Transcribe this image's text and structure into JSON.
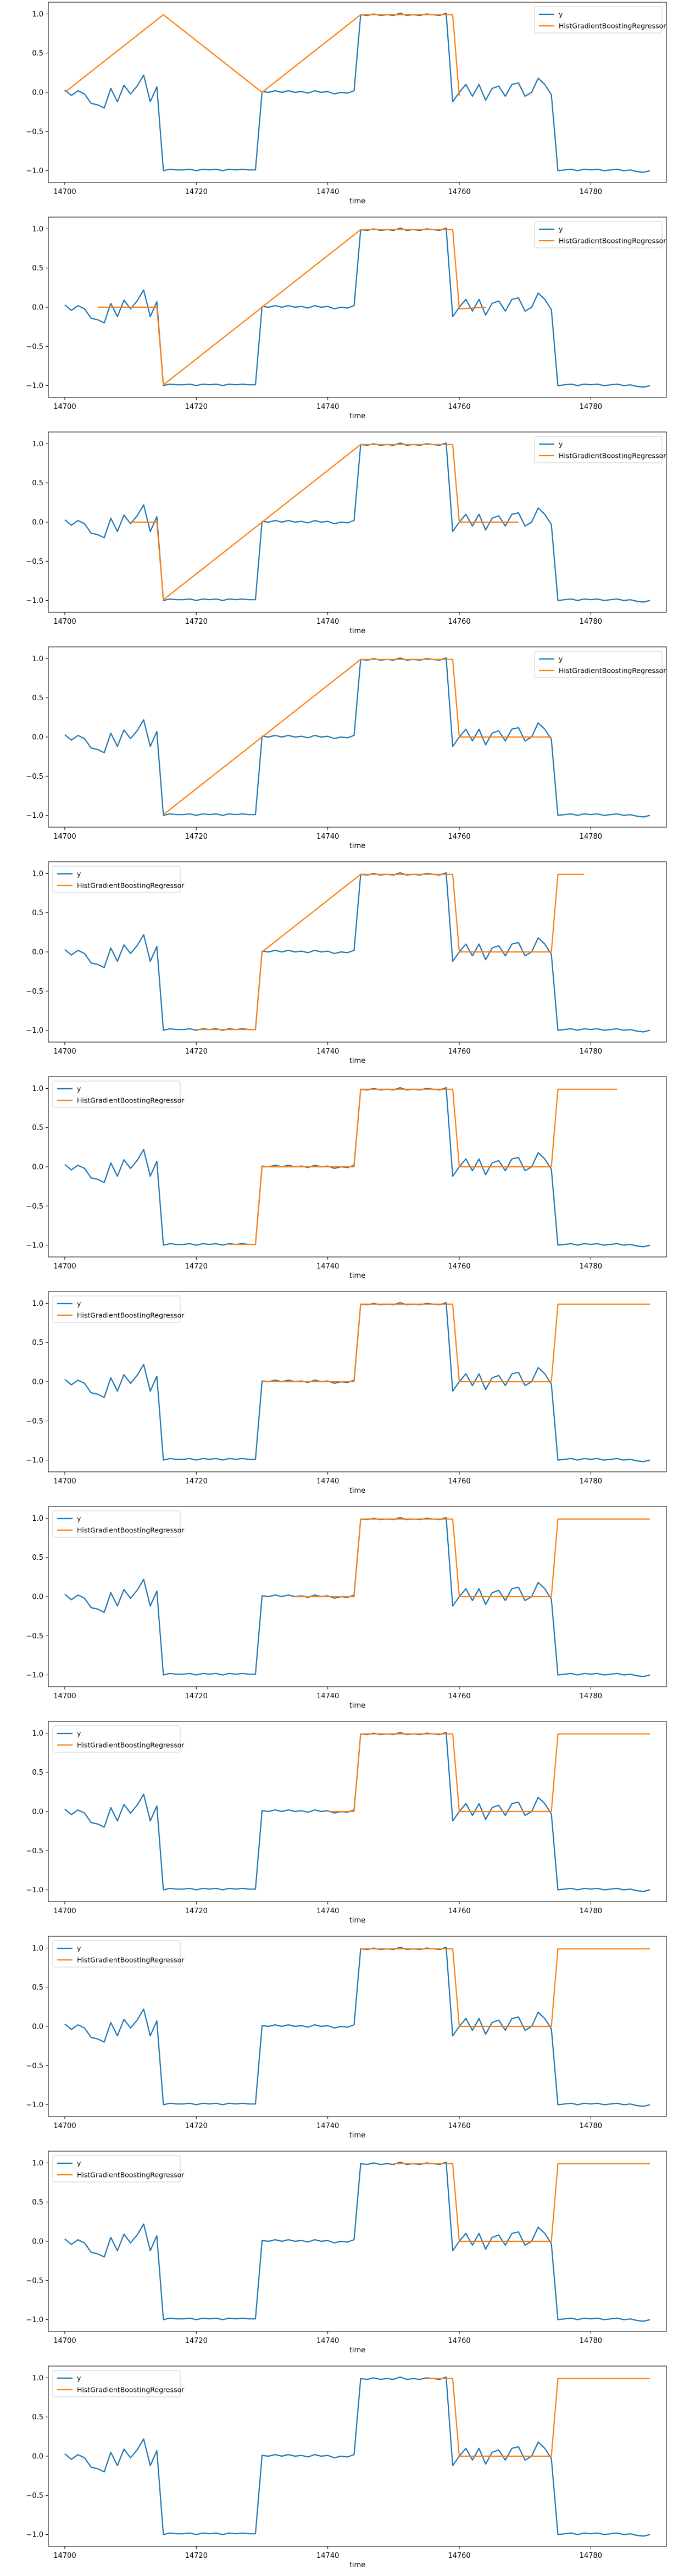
{
  "series_colors": {
    "y": "#1f77b4",
    "model": "#ff7f0e"
  },
  "y_series": {
    "name": "y",
    "x": [
      14700,
      14701,
      14702,
      14703,
      14704,
      14705,
      14706,
      14707,
      14708,
      14709,
      14710,
      14711,
      14712,
      14713,
      14714,
      14715,
      14716,
      14717,
      14718,
      14719,
      14720,
      14721,
      14722,
      14723,
      14724,
      14725,
      14726,
      14727,
      14728,
      14729,
      14730,
      14731,
      14732,
      14733,
      14734,
      14735,
      14736,
      14737,
      14738,
      14739,
      14740,
      14741,
      14742,
      14743,
      14744,
      14745,
      14746,
      14747,
      14748,
      14749,
      14750,
      14751,
      14752,
      14753,
      14754,
      14755,
      14756,
      14757,
      14758,
      14759,
      14760,
      14761,
      14762,
      14763,
      14764,
      14765,
      14766,
      14767,
      14768,
      14769,
      14770,
      14771,
      14772,
      14773,
      14774,
      14775,
      14776,
      14777,
      14778,
      14779,
      14780,
      14781,
      14782,
      14783,
      14784,
      14785,
      14786,
      14787,
      14788,
      14789
    ],
    "values": [
      0.03,
      -0.04,
      0.02,
      -0.02,
      -0.14,
      -0.16,
      -0.2,
      0.05,
      -0.12,
      0.09,
      -0.02,
      0.08,
      0.22,
      -0.12,
      0.07,
      -1.0,
      -0.98,
      -0.99,
      -0.99,
      -0.98,
      -1.0,
      -0.98,
      -0.99,
      -0.98,
      -1.0,
      -0.98,
      -0.99,
      -0.98,
      -0.99,
      -0.99,
      0.01,
      0.0,
      0.02,
      0.0,
      0.02,
      0.0,
      0.01,
      -0.01,
      0.02,
      0.0,
      0.01,
      -0.02,
      0.0,
      -0.01,
      0.02,
      0.99,
      0.98,
      1.0,
      0.98,
      0.99,
      0.98,
      1.01,
      0.98,
      0.99,
      0.98,
      1.0,
      0.99,
      0.98,
      1.01,
      -0.12,
      0.0,
      0.1,
      -0.05,
      0.1,
      -0.1,
      0.05,
      0.08,
      -0.05,
      0.1,
      0.12,
      -0.05,
      0.0,
      0.18,
      0.1,
      -0.03,
      -1.0,
      -0.99,
      -0.98,
      -1.0,
      -0.98,
      -0.99,
      -0.98,
      -1.0,
      -0.99,
      -0.98,
      -1.0,
      -0.99,
      -1.01,
      -1.02,
      -1.0
    ]
  },
  "chart_data": [
    {
      "type": "line",
      "xlabel": "time",
      "xlim": [
        14697.5,
        14791.5
      ],
      "ylim": [
        -1.15,
        1.15
      ],
      "xticks": [
        14700,
        14720,
        14740,
        14760,
        14780
      ],
      "xtick_labels": [
        "14700",
        "14720",
        "14740",
        "14760",
        "14780"
      ],
      "yticks": [
        -1.0,
        -0.5,
        0.0,
        0.5,
        1.0
      ],
      "ytick_labels": [
        "−1.0",
        "−0.5",
        "0.0",
        "0.5",
        "1.0"
      ],
      "legend": [
        "y",
        "HistGradientBoostingRegressor"
      ],
      "legend_loc": "upper right",
      "model_x": [
        14700,
        14715,
        14730,
        14745,
        14759,
        14760
      ],
      "model_values": [
        0.0,
        0.99,
        0.0,
        0.99,
        0.99,
        -0.05
      ]
    },
    {
      "type": "line",
      "xlabel": "time",
      "xlim": [
        14697.5,
        14791.5
      ],
      "ylim": [
        -1.15,
        1.15
      ],
      "xticks": [
        14700,
        14720,
        14740,
        14760,
        14780
      ],
      "xtick_labels": [
        "14700",
        "14720",
        "14740",
        "14760",
        "14780"
      ],
      "yticks": [
        -1.0,
        -0.5,
        0.0,
        0.5,
        1.0
      ],
      "ytick_labels": [
        "−1.0",
        "−0.5",
        "0.0",
        "0.5",
        "1.0"
      ],
      "legend": [
        "y",
        "HistGradientBoostingRegressor"
      ],
      "legend_loc": "upper right",
      "model_x": [
        14705,
        14714,
        14715,
        14730,
        14745,
        14759,
        14760,
        14764
      ],
      "model_values": [
        0.0,
        0.0,
        -0.99,
        0.0,
        0.99,
        0.99,
        -0.02,
        0.0
      ]
    },
    {
      "type": "line",
      "xlabel": "time",
      "xlim": [
        14697.5,
        14791.5
      ],
      "ylim": [
        -1.15,
        1.15
      ],
      "xticks": [
        14700,
        14720,
        14740,
        14760,
        14780
      ],
      "xtick_labels": [
        "14700",
        "14720",
        "14740",
        "14760",
        "14780"
      ],
      "yticks": [
        -1.0,
        -0.5,
        0.0,
        0.5,
        1.0
      ],
      "ytick_labels": [
        "−1.0",
        "−0.5",
        "0.0",
        "0.5",
        "1.0"
      ],
      "legend": [
        "y",
        "HistGradientBoostingRegressor"
      ],
      "legend_loc": "upper right",
      "model_x": [
        14710,
        14714,
        14715,
        14730,
        14745,
        14759,
        14760,
        14769
      ],
      "model_values": [
        0.0,
        0.0,
        -0.99,
        0.0,
        0.99,
        0.99,
        0.0,
        0.0
      ]
    },
    {
      "type": "line",
      "xlabel": "time",
      "xlim": [
        14697.5,
        14791.5
      ],
      "ylim": [
        -1.15,
        1.15
      ],
      "xticks": [
        14700,
        14720,
        14740,
        14760,
        14780
      ],
      "xtick_labels": [
        "14700",
        "14720",
        "14740",
        "14760",
        "14780"
      ],
      "yticks": [
        -1.0,
        -0.5,
        0.0,
        0.5,
        1.0
      ],
      "ytick_labels": [
        "−1.0",
        "−0.5",
        "0.0",
        "0.5",
        "1.0"
      ],
      "legend": [
        "y",
        "HistGradientBoostingRegressor"
      ],
      "legend_loc": "upper right",
      "model_x": [
        14715,
        14730,
        14745,
        14759,
        14760,
        14774
      ],
      "model_values": [
        -0.99,
        0.0,
        0.99,
        0.99,
        0.0,
        0.0
      ]
    },
    {
      "type": "line",
      "xlabel": "time",
      "xlim": [
        14697.5,
        14791.5
      ],
      "ylim": [
        -1.15,
        1.15
      ],
      "xticks": [
        14700,
        14720,
        14740,
        14760,
        14780
      ],
      "xtick_labels": [
        "14700",
        "14720",
        "14740",
        "14760",
        "14780"
      ],
      "yticks": [
        -1.0,
        -0.5,
        0.0,
        0.5,
        1.0
      ],
      "ytick_labels": [
        "−1.0",
        "−0.5",
        "0.0",
        "0.5",
        "1.0"
      ],
      "legend": [
        "y",
        "HistGradientBoostingRegressor"
      ],
      "legend_loc": "upper left",
      "model_x": [
        14720,
        14729,
        14730,
        14745,
        14759,
        14760,
        14774,
        14775,
        14779
      ],
      "model_values": [
        -0.99,
        -0.99,
        0.0,
        0.99,
        0.99,
        0.0,
        0.0,
        0.99,
        0.99
      ]
    },
    {
      "type": "line",
      "xlabel": "time",
      "xlim": [
        14697.5,
        14791.5
      ],
      "ylim": [
        -1.15,
        1.15
      ],
      "xticks": [
        14700,
        14720,
        14740,
        14760,
        14780
      ],
      "xtick_labels": [
        "14700",
        "14720",
        "14740",
        "14760",
        "14780"
      ],
      "yticks": [
        -1.0,
        -0.5,
        0.0,
        0.5,
        1.0
      ],
      "ytick_labels": [
        "−1.0",
        "−0.5",
        "0.0",
        "0.5",
        "1.0"
      ],
      "legend": [
        "y",
        "HistGradientBoostingRegressor"
      ],
      "legend_loc": "upper left",
      "model_x": [
        14725,
        14729,
        14730,
        14744,
        14745,
        14759,
        14760,
        14774,
        14775,
        14784
      ],
      "model_values": [
        -0.99,
        -0.99,
        0.0,
        0.0,
        0.99,
        0.99,
        0.0,
        0.0,
        0.99,
        0.99
      ]
    },
    {
      "type": "line",
      "xlabel": "time",
      "xlim": [
        14697.5,
        14791.5
      ],
      "ylim": [
        -1.15,
        1.15
      ],
      "xticks": [
        14700,
        14720,
        14740,
        14760,
        14780
      ],
      "xtick_labels": [
        "14700",
        "14720",
        "14740",
        "14760",
        "14780"
      ],
      "yticks": [
        -1.0,
        -0.5,
        0.0,
        0.5,
        1.0
      ],
      "ytick_labels": [
        "−1.0",
        "−0.5",
        "0.0",
        "0.5",
        "1.0"
      ],
      "legend": [
        "y",
        "HistGradientBoostingRegressor"
      ],
      "legend_loc": "upper left",
      "model_x": [
        14730,
        14744,
        14745,
        14759,
        14760,
        14774,
        14775,
        14789
      ],
      "model_values": [
        0.0,
        0.0,
        0.99,
        0.99,
        0.0,
        0.0,
        0.99,
        0.99
      ]
    },
    {
      "type": "line",
      "xlabel": "time",
      "xlim": [
        14697.5,
        14791.5
      ],
      "ylim": [
        -1.15,
        1.15
      ],
      "xticks": [
        14700,
        14720,
        14740,
        14760,
        14780
      ],
      "xtick_labels": [
        "14700",
        "14720",
        "14740",
        "14760",
        "14780"
      ],
      "yticks": [
        -1.0,
        -0.5,
        0.0,
        0.5,
        1.0
      ],
      "ytick_labels": [
        "−1.0",
        "−0.5",
        "0.0",
        "0.5",
        "1.0"
      ],
      "legend": [
        "y",
        "HistGradientBoostingRegressor"
      ],
      "legend_loc": "upper left",
      "model_x": [
        14735,
        14744,
        14745,
        14759,
        14760,
        14774,
        14775,
        14789
      ],
      "model_values": [
        0.0,
        0.0,
        0.99,
        0.99,
        0.0,
        0.0,
        0.99,
        0.99
      ]
    },
    {
      "type": "line",
      "xlabel": "time",
      "xlim": [
        14697.5,
        14791.5
      ],
      "ylim": [
        -1.15,
        1.15
      ],
      "xticks": [
        14700,
        14720,
        14740,
        14760,
        14780
      ],
      "xtick_labels": [
        "14700",
        "14720",
        "14740",
        "14760",
        "14780"
      ],
      "yticks": [
        -1.0,
        -0.5,
        0.0,
        0.5,
        1.0
      ],
      "ytick_labels": [
        "−1.0",
        "−0.5",
        "0.0",
        "0.5",
        "1.0"
      ],
      "legend": [
        "y",
        "HistGradientBoostingRegressor"
      ],
      "legend_loc": "upper left",
      "model_x": [
        14740,
        14744,
        14745,
        14759,
        14760,
        14774,
        14775,
        14789
      ],
      "model_values": [
        0.0,
        0.0,
        0.99,
        0.99,
        0.0,
        0.0,
        0.99,
        0.99
      ]
    },
    {
      "type": "line",
      "xlabel": "time",
      "xlim": [
        14697.5,
        14791.5
      ],
      "ylim": [
        -1.15,
        1.15
      ],
      "xticks": [
        14700,
        14720,
        14740,
        14760,
        14780
      ],
      "xtick_labels": [
        "14700",
        "14720",
        "14740",
        "14760",
        "14780"
      ],
      "yticks": [
        -1.0,
        -0.5,
        0.0,
        0.5,
        1.0
      ],
      "ytick_labels": [
        "−1.0",
        "−0.5",
        "0.0",
        "0.5",
        "1.0"
      ],
      "legend": [
        "y",
        "HistGradientBoostingRegressor"
      ],
      "legend_loc": "upper left",
      "model_x": [
        14745,
        14759,
        14760,
        14774,
        14775,
        14789
      ],
      "model_values": [
        0.99,
        0.99,
        0.0,
        0.0,
        0.99,
        0.99
      ]
    },
    {
      "type": "line",
      "xlabel": "time",
      "xlim": [
        14697.5,
        14791.5
      ],
      "ylim": [
        -1.15,
        1.15
      ],
      "xticks": [
        14700,
        14720,
        14740,
        14760,
        14780
      ],
      "xtick_labels": [
        "14700",
        "14720",
        "14740",
        "14760",
        "14780"
      ],
      "yticks": [
        -1.0,
        -0.5,
        0.0,
        0.5,
        1.0
      ],
      "ytick_labels": [
        "−1.0",
        "−0.5",
        "0.0",
        "0.5",
        "1.0"
      ],
      "legend": [
        "y",
        "HistGradientBoostingRegressor"
      ],
      "legend_loc": "upper left",
      "model_x": [
        14750,
        14759,
        14760,
        14774,
        14775,
        14789
      ],
      "model_values": [
        0.99,
        0.99,
        0.0,
        0.0,
        0.99,
        0.99
      ]
    },
    {
      "type": "line",
      "xlabel": "time",
      "xlim": [
        14697.5,
        14791.5
      ],
      "ylim": [
        -1.15,
        1.15
      ],
      "xticks": [
        14700,
        14720,
        14740,
        14760,
        14780
      ],
      "xtick_labels": [
        "14700",
        "14720",
        "14740",
        "14760",
        "14780"
      ],
      "yticks": [
        -1.0,
        -0.5,
        0.0,
        0.5,
        1.0
      ],
      "ytick_labels": [
        "−1.0",
        "−0.5",
        "0.0",
        "0.5",
        "1.0"
      ],
      "legend": [
        "y",
        "HistGradientBoostingRegressor"
      ],
      "legend_loc": "upper left",
      "model_x": [
        14755,
        14759,
        14760,
        14774,
        14775,
        14789
      ],
      "model_values": [
        0.99,
        0.99,
        0.0,
        0.0,
        0.99,
        0.99
      ]
    }
  ]
}
